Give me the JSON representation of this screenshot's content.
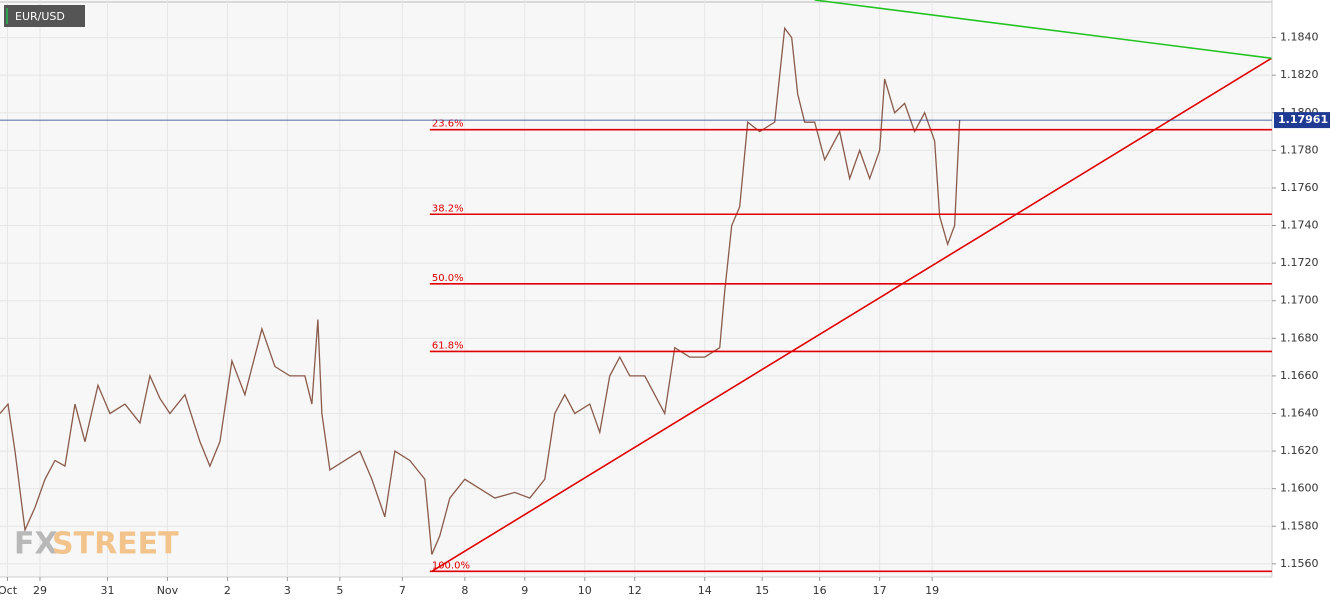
{
  "chart_data": {
    "type": "line",
    "title": "EUR/USD",
    "watermark": {
      "left": "FX",
      "right": "STREET"
    },
    "current_price": {
      "value": 1.17961,
      "label": "1.17961",
      "color": "#1f3a93"
    },
    "xlim": [
      0,
      509
    ],
    "ylim": [
      1.1553,
      1.186
    ],
    "grid": true,
    "xticks": [
      {
        "value": 3,
        "label": "Oct"
      },
      {
        "value": 16,
        "label": "29"
      },
      {
        "value": 43,
        "label": "31"
      },
      {
        "value": 67,
        "label": "Nov"
      },
      {
        "value": 91,
        "label": "2"
      },
      {
        "value": 115,
        "label": "3"
      },
      {
        "value": 136,
        "label": "5"
      },
      {
        "value": 161,
        "label": "7"
      },
      {
        "value": 186,
        "label": "8"
      },
      {
        "value": 210,
        "label": "9"
      },
      {
        "value": 234,
        "label": "10"
      },
      {
        "value": 254,
        "label": "12"
      },
      {
        "value": 282,
        "label": "14"
      },
      {
        "value": 305,
        "label": "15"
      },
      {
        "value": 328,
        "label": "16"
      },
      {
        "value": 352,
        "label": "17"
      },
      {
        "value": 373,
        "label": "19"
      }
    ],
    "yticks": [
      {
        "value": 1.156,
        "label": "1.1560"
      },
      {
        "value": 1.158,
        "label": "1.1580"
      },
      {
        "value": 1.16,
        "label": "1.1600"
      },
      {
        "value": 1.162,
        "label": "1.1620"
      },
      {
        "value": 1.164,
        "label": "1.1640"
      },
      {
        "value": 1.166,
        "label": "1.1660"
      },
      {
        "value": 1.168,
        "label": "1.1680"
      },
      {
        "value": 1.17,
        "label": "1.1700"
      },
      {
        "value": 1.172,
        "label": "1.1720"
      },
      {
        "value": 1.174,
        "label": "1.1740"
      },
      {
        "value": 1.176,
        "label": "1.1760"
      },
      {
        "value": 1.178,
        "label": "1.1780"
      },
      {
        "value": 1.18,
        "label": "1.1800"
      },
      {
        "value": 1.182,
        "label": "1.1820"
      },
      {
        "value": 1.184,
        "label": "1.1840"
      }
    ],
    "series": [
      {
        "name": "EUR/USD",
        "color": "#8a5a4a",
        "x": [
          0,
          3.2,
          6,
          10,
          14,
          18,
          22,
          26,
          30,
          34,
          39.2,
          44,
          50,
          56,
          60,
          64,
          68,
          74,
          80,
          84,
          88,
          92.8,
          98,
          104.8,
          110,
          116,
          122,
          124.8,
          127.2,
          128.8,
          132,
          138,
          144,
          148.8,
          154,
          158,
          164,
          170,
          172.8,
          176,
          180,
          186,
          192,
          198,
          206,
          212,
          218,
          222,
          226,
          230,
          236,
          240,
          244,
          248,
          252,
          258,
          266,
          270,
          276,
          282,
          288,
          290,
          292.8,
          296,
          299.2,
          304,
          310,
          314,
          316.8,
          319.2,
          322,
          326,
          330,
          336,
          340,
          344,
          348,
          352,
          354,
          358,
          362,
          366,
          370,
          374,
          376,
          379.2,
          382,
          384
        ],
        "values": [
          1.164,
          1.1645,
          1.162,
          1.1578,
          1.159,
          1.1605,
          1.1615,
          1.1612,
          1.1645,
          1.1625,
          1.1655,
          1.164,
          1.1645,
          1.1635,
          1.166,
          1.1648,
          1.164,
          1.165,
          1.1625,
          1.1612,
          1.1625,
          1.1668,
          1.165,
          1.1685,
          1.1665,
          1.166,
          1.166,
          1.1645,
          1.169,
          1.164,
          1.161,
          1.1615,
          1.162,
          1.1605,
          1.1585,
          1.162,
          1.1615,
          1.1605,
          1.1565,
          1.1575,
          1.1595,
          1.1605,
          1.16,
          1.1595,
          1.1598,
          1.1595,
          1.1605,
          1.164,
          1.165,
          1.164,
          1.1645,
          1.163,
          1.166,
          1.167,
          1.166,
          1.166,
          1.164,
          1.1675,
          1.167,
          1.167,
          1.1675,
          1.1705,
          1.174,
          1.175,
          1.1795,
          1.179,
          1.1795,
          1.1845,
          1.184,
          1.181,
          1.1795,
          1.1795,
          1.1775,
          1.179,
          1.1765,
          1.178,
          1.1765,
          1.178,
          1.1818,
          1.18,
          1.1805,
          1.179,
          1.18,
          1.1785,
          1.1745,
          1.173,
          1.174,
          1.1796
        ]
      }
    ],
    "fib_levels": {
      "color": "#e00000",
      "start": 172,
      "levels": [
        {
          "label": "23.6%",
          "value": 1.1791
        },
        {
          "label": "38.2%",
          "value": 1.1746
        },
        {
          "label": "50.0%",
          "value": 1.1709
        },
        {
          "label": "61.8%",
          "value": 1.1673
        },
        {
          "label": "100.0%",
          "value": 1.1556
        }
      ]
    },
    "trendlines": [
      {
        "color": "#e00000",
        "x": [
          172.8,
          508.8
        ],
        "y": [
          1.1556,
          1.1829
        ]
      },
      {
        "color": "#22c422",
        "x": [
          326,
          508.8
        ],
        "y": [
          1.186,
          1.1829
        ]
      }
    ]
  }
}
